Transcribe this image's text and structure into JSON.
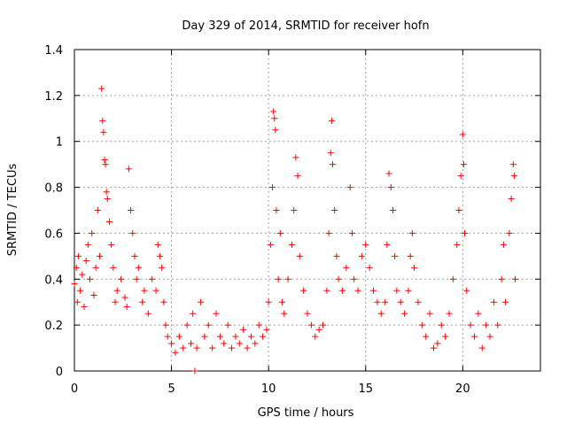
{
  "chart_data": {
    "type": "scatter",
    "title": "Day 329 of 2014, SRMTID for receiver hofn",
    "xlabel": "GPS time / hours",
    "ylabel": "SRMTID / TECUs",
    "xlim": [
      0,
      24
    ],
    "ylim": [
      0,
      1.4
    ],
    "xticks": [
      0,
      5,
      10,
      15,
      20
    ],
    "yticks": [
      0,
      0.2,
      0.4,
      0.6,
      0.8,
      1,
      1.2,
      1.4
    ],
    "grid": true,
    "marker": "+",
    "color": "#ff0000",
    "series": [
      {
        "name": "SRMTID",
        "points": [
          [
            0.0,
            0.38
          ],
          [
            0.1,
            0.45
          ],
          [
            0.15,
            0.3
          ],
          [
            0.2,
            0.5
          ],
          [
            0.3,
            0.35
          ],
          [
            0.4,
            0.42
          ],
          [
            0.5,
            0.28
          ],
          [
            0.6,
            0.48
          ],
          [
            0.7,
            0.55
          ],
          [
            0.8,
            0.4
          ],
          [
            0.9,
            0.6
          ],
          [
            1.0,
            0.33
          ],
          [
            1.1,
            0.45
          ],
          [
            1.2,
            0.7
          ],
          [
            1.3,
            0.5
          ],
          [
            1.4,
            1.23
          ],
          [
            1.45,
            1.09
          ],
          [
            1.5,
            1.04
          ],
          [
            1.55,
            0.92
          ],
          [
            1.6,
            0.9
          ],
          [
            1.65,
            0.78
          ],
          [
            1.7,
            0.75
          ],
          [
            1.8,
            0.65
          ],
          [
            1.9,
            0.55
          ],
          [
            2.0,
            0.45
          ],
          [
            2.1,
            0.3
          ],
          [
            2.2,
            0.35
          ],
          [
            2.4,
            0.4
          ],
          [
            2.6,
            0.32
          ],
          [
            2.7,
            0.28
          ],
          [
            2.8,
            0.88
          ],
          [
            2.9,
            0.7
          ],
          [
            3.0,
            0.6
          ],
          [
            3.1,
            0.5
          ],
          [
            3.2,
            0.4
          ],
          [
            3.3,
            0.45
          ],
          [
            3.5,
            0.3
          ],
          [
            3.6,
            0.35
          ],
          [
            3.8,
            0.25
          ],
          [
            4.0,
            0.4
          ],
          [
            4.2,
            0.35
          ],
          [
            4.3,
            0.55
          ],
          [
            4.4,
            0.5
          ],
          [
            4.5,
            0.45
          ],
          [
            4.6,
            0.3
          ],
          [
            4.7,
            0.2
          ],
          [
            4.8,
            0.15
          ],
          [
            5.0,
            0.12
          ],
          [
            5.2,
            0.08
          ],
          [
            5.4,
            0.15
          ],
          [
            5.6,
            0.1
          ],
          [
            5.8,
            0.2
          ],
          [
            6.0,
            0.12
          ],
          [
            6.1,
            0.25
          ],
          [
            6.2,
            0.0
          ],
          [
            6.3,
            0.1
          ],
          [
            6.5,
            0.3
          ],
          [
            6.7,
            0.15
          ],
          [
            6.9,
            0.2
          ],
          [
            7.1,
            0.1
          ],
          [
            7.3,
            0.25
          ],
          [
            7.5,
            0.15
          ],
          [
            7.7,
            0.12
          ],
          [
            7.9,
            0.2
          ],
          [
            8.1,
            0.1
          ],
          [
            8.3,
            0.15
          ],
          [
            8.5,
            0.12
          ],
          [
            8.7,
            0.18
          ],
          [
            8.9,
            0.1
          ],
          [
            9.1,
            0.15
          ],
          [
            9.3,
            0.12
          ],
          [
            9.5,
            0.2
          ],
          [
            9.7,
            0.15
          ],
          [
            9.9,
            0.18
          ],
          [
            10.0,
            0.3
          ],
          [
            10.1,
            0.55
          ],
          [
            10.2,
            0.8
          ],
          [
            10.25,
            1.13
          ],
          [
            10.3,
            1.1
          ],
          [
            10.35,
            1.05
          ],
          [
            10.4,
            0.7
          ],
          [
            10.5,
            0.4
          ],
          [
            10.6,
            0.6
          ],
          [
            10.7,
            0.3
          ],
          [
            10.8,
            0.25
          ],
          [
            11.0,
            0.4
          ],
          [
            11.2,
            0.55
          ],
          [
            11.3,
            0.7
          ],
          [
            11.4,
            0.93
          ],
          [
            11.5,
            0.85
          ],
          [
            11.6,
            0.5
          ],
          [
            11.8,
            0.35
          ],
          [
            12.0,
            0.25
          ],
          [
            12.2,
            0.2
          ],
          [
            12.4,
            0.15
          ],
          [
            12.6,
            0.18
          ],
          [
            12.8,
            0.2
          ],
          [
            13.0,
            0.35
          ],
          [
            13.1,
            0.6
          ],
          [
            13.2,
            0.95
          ],
          [
            13.25,
            1.09
          ],
          [
            13.3,
            0.9
          ],
          [
            13.4,
            0.7
          ],
          [
            13.5,
            0.5
          ],
          [
            13.6,
            0.4
          ],
          [
            13.8,
            0.35
          ],
          [
            14.0,
            0.45
          ],
          [
            14.2,
            0.8
          ],
          [
            14.3,
            0.6
          ],
          [
            14.4,
            0.4
          ],
          [
            14.6,
            0.35
          ],
          [
            14.8,
            0.5
          ],
          [
            15.0,
            0.55
          ],
          [
            15.2,
            0.45
          ],
          [
            15.4,
            0.35
          ],
          [
            15.6,
            0.3
          ],
          [
            15.8,
            0.25
          ],
          [
            16.0,
            0.3
          ],
          [
            16.1,
            0.55
          ],
          [
            16.2,
            0.86
          ],
          [
            16.3,
            0.8
          ],
          [
            16.4,
            0.7
          ],
          [
            16.5,
            0.5
          ],
          [
            16.6,
            0.35
          ],
          [
            16.8,
            0.3
          ],
          [
            17.0,
            0.25
          ],
          [
            17.2,
            0.35
          ],
          [
            17.3,
            0.5
          ],
          [
            17.4,
            0.6
          ],
          [
            17.5,
            0.45
          ],
          [
            17.7,
            0.3
          ],
          [
            17.9,
            0.2
          ],
          [
            18.1,
            0.15
          ],
          [
            18.3,
            0.25
          ],
          [
            18.5,
            0.1
          ],
          [
            18.7,
            0.12
          ],
          [
            18.9,
            0.2
          ],
          [
            19.1,
            0.15
          ],
          [
            19.3,
            0.25
          ],
          [
            19.5,
            0.4
          ],
          [
            19.7,
            0.55
          ],
          [
            19.8,
            0.7
          ],
          [
            19.9,
            0.85
          ],
          [
            20.0,
            1.03
          ],
          [
            20.05,
            0.9
          ],
          [
            20.1,
            0.6
          ],
          [
            20.2,
            0.35
          ],
          [
            20.4,
            0.2
          ],
          [
            20.6,
            0.15
          ],
          [
            20.8,
            0.25
          ],
          [
            21.0,
            0.1
          ],
          [
            21.2,
            0.2
          ],
          [
            21.4,
            0.15
          ],
          [
            21.6,
            0.3
          ],
          [
            21.8,
            0.2
          ],
          [
            22.0,
            0.4
          ],
          [
            22.1,
            0.55
          ],
          [
            22.2,
            0.3
          ],
          [
            22.4,
            0.6
          ],
          [
            22.5,
            0.75
          ],
          [
            22.6,
            0.9
          ],
          [
            22.65,
            0.85
          ],
          [
            22.7,
            0.4
          ]
        ]
      }
    ]
  }
}
